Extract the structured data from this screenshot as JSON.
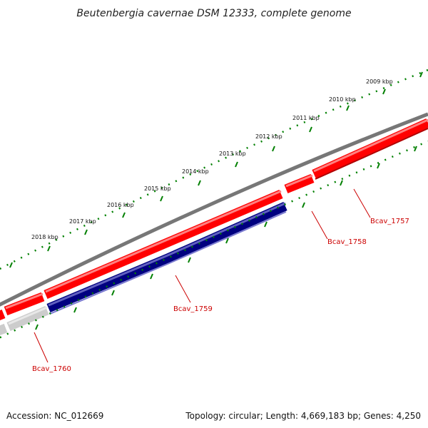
{
  "title": "Beutenbergia cavernae DSM 12333, complete genome",
  "footer": {
    "accession": "Accession: NC_012669",
    "summary": "Topology: circular; Length: 4,669,183 bp; Genes: 4,250"
  },
  "kbp_ticks": [
    "2009 kbp",
    "2010 kbp",
    "2011 kbp",
    "2012 kbp",
    "2013 kbp",
    "2014 kbp",
    "2015 kbp",
    "2016 kbp",
    "2017 kbp",
    "2018 kbp"
  ],
  "genes": [
    {
      "name": "Bcav_1757",
      "color": "#ff0000"
    },
    {
      "name": "Bcav_1758",
      "color": "#ff0000"
    },
    {
      "name": "Bcav_1759",
      "color": "#000080"
    },
    {
      "name": "Bcav_1760",
      "color": "#cccccc"
    }
  ],
  "colors": {
    "forward_gene": "#ff0000",
    "reverse_gene": "#000080",
    "pseudo_gene": "#cccccc",
    "backbone": "#777777",
    "tick": "#008000",
    "gene_label": "#cc0000"
  }
}
